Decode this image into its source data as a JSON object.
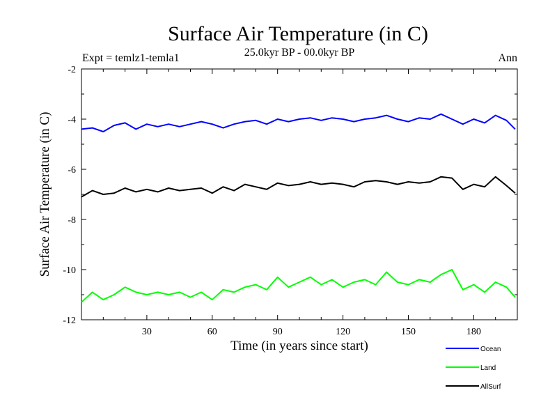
{
  "chart_data": {
    "type": "line",
    "title": "Surface Air Temperature (in C)",
    "subtitle": "25.0kyr BP - 00.0kyr BP",
    "experiment_label": "Expt = temlz1-temla1",
    "period_label": "Ann",
    "xlabel": "Time (in years since start)",
    "ylabel": "Surface Air Temperature (in C)",
    "xlim": [
      0,
      200
    ],
    "ylim": [
      -12,
      -2
    ],
    "x_ticks": [
      30,
      60,
      90,
      120,
      150,
      180
    ],
    "y_ticks": [
      -2,
      -4,
      -6,
      -8,
      -10,
      -12
    ],
    "grid": false,
    "legend_position": "bottom-right, below plot",
    "series": [
      {
        "name": "Ocean",
        "color": "#0000ff",
        "x": [
          0,
          5,
          10,
          15,
          20,
          25,
          30,
          35,
          40,
          45,
          50,
          55,
          60,
          65,
          70,
          75,
          80,
          85,
          90,
          95,
          100,
          105,
          110,
          115,
          120,
          125,
          130,
          135,
          140,
          145,
          150,
          155,
          160,
          165,
          170,
          175,
          180,
          185,
          190,
          195,
          199
        ],
        "values": [
          -4.4,
          -4.35,
          -4.5,
          -4.25,
          -4.15,
          -4.4,
          -4.2,
          -4.3,
          -4.2,
          -4.3,
          -4.2,
          -4.1,
          -4.2,
          -4.35,
          -4.2,
          -4.1,
          -4.05,
          -4.2,
          -4.0,
          -4.1,
          -4.0,
          -3.95,
          -4.05,
          -3.95,
          -4.0,
          -4.1,
          -4.0,
          -3.95,
          -3.85,
          -4.0,
          -4.1,
          -3.95,
          -4.0,
          -3.8,
          -4.0,
          -4.2,
          -4.0,
          -4.15,
          -3.85,
          -4.05,
          -4.4
        ]
      },
      {
        "name": "Land",
        "color": "#00ff00",
        "x": [
          0,
          5,
          10,
          15,
          20,
          25,
          30,
          35,
          40,
          45,
          50,
          55,
          60,
          65,
          70,
          75,
          80,
          85,
          90,
          95,
          100,
          105,
          110,
          115,
          120,
          125,
          130,
          135,
          140,
          145,
          150,
          155,
          160,
          165,
          170,
          175,
          180,
          185,
          190,
          195,
          199
        ],
        "values": [
          -11.3,
          -10.9,
          -11.2,
          -11.0,
          -10.7,
          -10.9,
          -11.0,
          -10.9,
          -11.0,
          -10.9,
          -11.1,
          -10.9,
          -11.2,
          -10.8,
          -10.9,
          -10.7,
          -10.6,
          -10.8,
          -10.3,
          -10.7,
          -10.5,
          -10.3,
          -10.6,
          -10.4,
          -10.7,
          -10.5,
          -10.4,
          -10.6,
          -10.1,
          -10.5,
          -10.6,
          -10.4,
          -10.5,
          -10.2,
          -10.0,
          -10.8,
          -10.6,
          -10.9,
          -10.5,
          -10.7,
          -11.1
        ]
      },
      {
        "name": "AllSurf",
        "color": "#000000",
        "x": [
          0,
          5,
          10,
          15,
          20,
          25,
          30,
          35,
          40,
          45,
          50,
          55,
          60,
          65,
          70,
          75,
          80,
          85,
          90,
          95,
          100,
          105,
          110,
          115,
          120,
          125,
          130,
          135,
          140,
          145,
          150,
          155,
          160,
          165,
          170,
          175,
          180,
          185,
          190,
          195,
          199
        ],
        "values": [
          -7.1,
          -6.85,
          -7.0,
          -6.95,
          -6.75,
          -6.9,
          -6.8,
          -6.9,
          -6.75,
          -6.85,
          -6.8,
          -6.75,
          -6.95,
          -6.7,
          -6.85,
          -6.6,
          -6.7,
          -6.8,
          -6.55,
          -6.65,
          -6.6,
          -6.5,
          -6.6,
          -6.55,
          -6.6,
          -6.7,
          -6.5,
          -6.45,
          -6.5,
          -6.6,
          -6.5,
          -6.55,
          -6.5,
          -6.3,
          -6.35,
          -6.8,
          -6.6,
          -6.7,
          -6.3,
          -6.65,
          -6.95
        ]
      }
    ]
  }
}
